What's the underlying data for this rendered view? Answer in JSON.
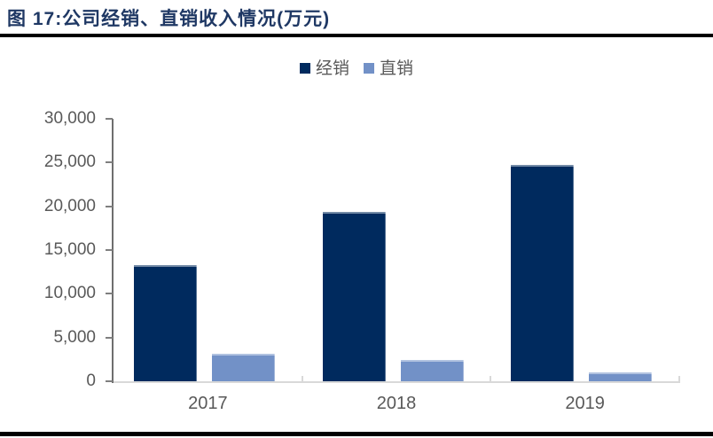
{
  "figure": {
    "title": "图 17:公司经销、直销收入情况(万元)"
  },
  "chart_data": {
    "type": "bar",
    "title": "图 17:公司经销、直销收入情况(万元)",
    "categories": [
      "2017",
      "2018",
      "2019"
    ],
    "series": [
      {
        "name": "经销",
        "color": "#002A5E",
        "values": [
          13300,
          19400,
          24750
        ]
      },
      {
        "name": "直销",
        "color": "#7291C7",
        "values": [
          3150,
          2450,
          1050
        ]
      }
    ],
    "xlabel": "",
    "ylabel": "",
    "ylim": [
      0,
      30000
    ],
    "ytick_interval": 5000,
    "ytick_labels": [
      "0",
      "5,000",
      "10,000",
      "15,000",
      "20,000",
      "25,000",
      "30,000"
    ],
    "legend_position": "top-center",
    "grid": false,
    "colors": {
      "title_text": "#1F3864",
      "axis_line": "#6e6e6e",
      "category_baseline": "#d9d9d9",
      "tick_label": "#595959",
      "rule": "#000000",
      "background": "#ffffff"
    }
  }
}
